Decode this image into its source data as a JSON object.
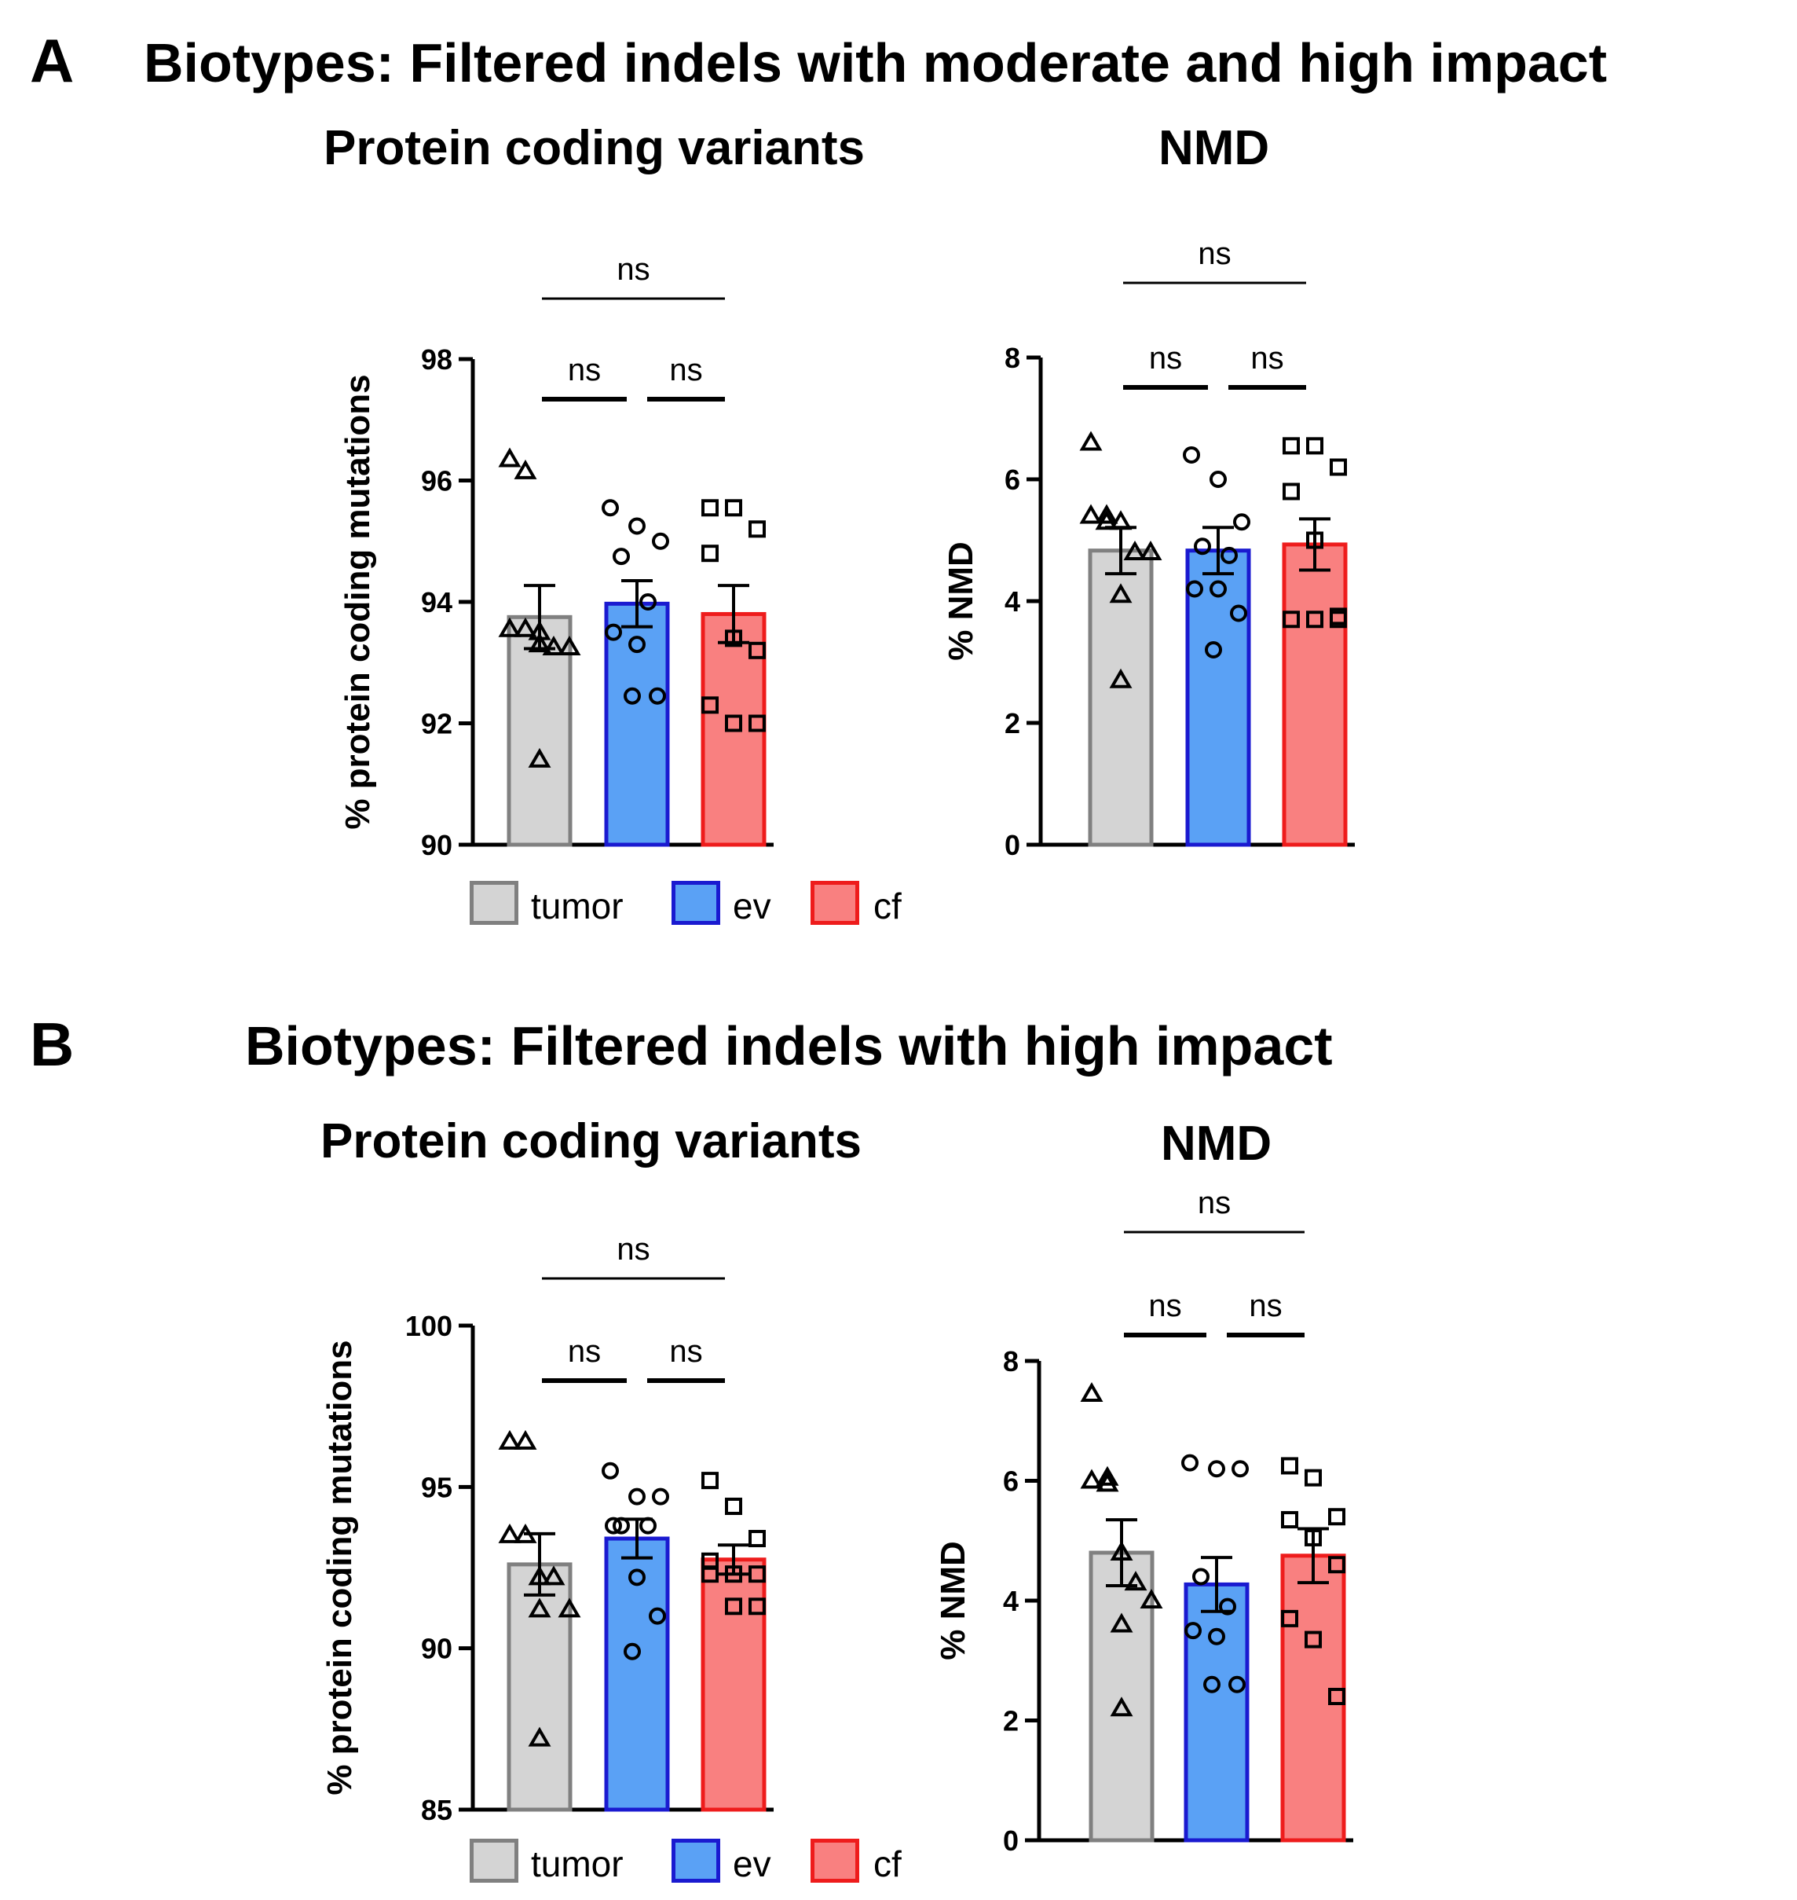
{
  "panels": [
    {
      "letter": "A",
      "title": "Biotypes: Filtered indels with moderate and high impact"
    },
    {
      "letter": "B",
      "title": "Biotypes: Filtered indels with high impact"
    }
  ],
  "legend": {
    "items": [
      {
        "label": "tumor",
        "fill": "#d4d4d4",
        "stroke": "#808080"
      },
      {
        "label": "ev",
        "fill": "#5aa1f5",
        "stroke": "#1a1ad0"
      },
      {
        "label": "cf",
        "fill": "#f98080",
        "stroke": "#ee1c1c"
      }
    ]
  },
  "colors": {
    "tumor_fill": "#d4d4d4",
    "tumor_stroke": "#808080",
    "ev_fill": "#5aa1f5",
    "ev_stroke": "#1a1ad0",
    "cf_fill": "#f98080",
    "cf_stroke": "#ee1c1c"
  },
  "chart_data": [
    {
      "id": "A-protein",
      "type": "bar",
      "title": "Protein coding variants",
      "ylabel": "% protein coding mutations",
      "ylim": [
        90,
        98
      ],
      "yticks": [
        90,
        92,
        94,
        96,
        98
      ],
      "categories": [
        "tumor",
        "ev",
        "cf"
      ],
      "markers": [
        "triangle",
        "circle",
        "square"
      ],
      "values": [
        93.75,
        93.97,
        93.8
      ],
      "sem": [
        0.52,
        0.38,
        0.47
      ],
      "points": [
        [
          96.35,
          96.15,
          93.55,
          93.55,
          93.5,
          93.25,
          93.25,
          93.3,
          91.4
        ],
        [
          95.55,
          95.25,
          95.0,
          94.75,
          94.0,
          93.5,
          93.3,
          92.45,
          92.45
        ],
        [
          95.55,
          95.55,
          95.2,
          94.8,
          93.4,
          93.2,
          92.3,
          92.0,
          92.0
        ]
      ],
      "significance": [
        {
          "label": "ns",
          "from": 0,
          "to": 1,
          "level": 1
        },
        {
          "label": "ns",
          "from": 1,
          "to": 2,
          "level": 1
        },
        {
          "label": "ns",
          "from": 0,
          "to": 2,
          "level": 2
        }
      ]
    },
    {
      "id": "A-nmd",
      "type": "bar",
      "title": "NMD",
      "ylabel": "% NMD",
      "ylim": [
        0,
        8
      ],
      "yticks": [
        0,
        2,
        4,
        6,
        8
      ],
      "categories": [
        "tumor",
        "ev",
        "cf"
      ],
      "markers": [
        "triangle",
        "circle",
        "square"
      ],
      "values": [
        4.83,
        4.83,
        4.93
      ],
      "sem": [
        0.38,
        0.38,
        0.42
      ],
      "points": [
        [
          6.6,
          5.4,
          5.4,
          5.3,
          5.3,
          4.8,
          4.8,
          4.1,
          2.7
        ],
        [
          6.4,
          6.0,
          5.3,
          4.9,
          4.75,
          4.2,
          4.2,
          3.8,
          3.2
        ],
        [
          6.55,
          6.55,
          6.2,
          5.8,
          5.0,
          3.75,
          3.7,
          3.7,
          3.7
        ]
      ],
      "significance": [
        {
          "label": "ns",
          "from": 0,
          "to": 1,
          "level": 1
        },
        {
          "label": "ns",
          "from": 1,
          "to": 2,
          "level": 1
        },
        {
          "label": "ns",
          "from": 0,
          "to": 2,
          "level": 2
        }
      ]
    },
    {
      "id": "B-protein",
      "type": "bar",
      "title": "Protein coding variants",
      "ylabel": "% protein coding mutations",
      "ylim": [
        85,
        100
      ],
      "yticks": [
        85,
        90,
        95,
        100
      ],
      "categories": [
        "tumor",
        "ev",
        "cf"
      ],
      "markers": [
        "triangle",
        "circle",
        "square"
      ],
      "values": [
        92.6,
        93.4,
        92.75
      ],
      "sem": [
        0.95,
        0.6,
        0.45
      ],
      "points": [
        [
          96.4,
          96.4,
          93.5,
          93.5,
          92.2,
          92.2,
          91.2,
          91.2,
          87.2
        ],
        [
          95.5,
          94.7,
          94.7,
          93.8,
          93.8,
          93.8,
          92.2,
          91.0,
          89.9
        ],
        [
          95.2,
          94.4,
          93.4,
          92.7,
          92.3,
          92.3,
          92.3,
          91.3,
          91.3
        ]
      ],
      "significance": [
        {
          "label": "ns",
          "from": 0,
          "to": 1,
          "level": 1
        },
        {
          "label": "ns",
          "from": 1,
          "to": 2,
          "level": 1
        },
        {
          "label": "ns",
          "from": 0,
          "to": 2,
          "level": 2
        }
      ]
    },
    {
      "id": "B-nmd",
      "type": "bar",
      "title": "NMD",
      "ylabel": "% NMD",
      "ylim": [
        0,
        8
      ],
      "yticks": [
        0,
        2,
        4,
        6,
        8
      ],
      "categories": [
        "tumor",
        "ev",
        "cf"
      ],
      "markers": [
        "triangle",
        "circle",
        "square"
      ],
      "values": [
        4.8,
        4.27,
        4.75
      ],
      "sem": [
        0.55,
        0.45,
        0.45
      ],
      "points": [
        [
          7.45,
          6.05,
          6.0,
          5.95,
          4.8,
          4.3,
          4.0,
          3.6,
          2.2
        ],
        [
          6.3,
          6.2,
          6.2,
          4.4,
          3.9,
          3.5,
          3.4,
          2.6,
          2.6
        ],
        [
          6.25,
          6.05,
          5.4,
          5.35,
          5.05,
          4.6,
          3.7,
          3.35,
          2.4
        ]
      ],
      "significance": [
        {
          "label": "ns",
          "from": 0,
          "to": 1,
          "level": 1
        },
        {
          "label": "ns",
          "from": 1,
          "to": 2,
          "level": 1
        },
        {
          "label": "ns",
          "from": 0,
          "to": 2,
          "level": 2
        }
      ]
    }
  ]
}
